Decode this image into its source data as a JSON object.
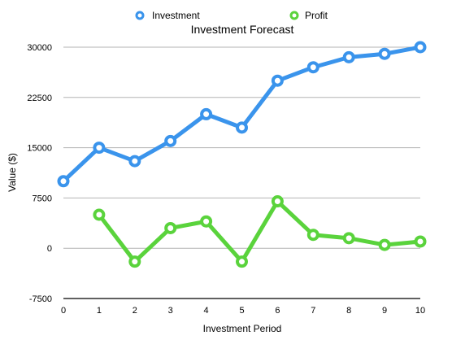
{
  "chart_data": {
    "type": "line",
    "title": "Investment Forecast",
    "xlabel": "Investment Period",
    "ylabel": "Value ($)",
    "x": [
      0,
      1,
      2,
      3,
      4,
      5,
      6,
      7,
      8,
      9,
      10
    ],
    "xlim": [
      0,
      10
    ],
    "ylim": [
      -7500,
      30000
    ],
    "yticks": [
      -7500,
      0,
      7500,
      15000,
      22500,
      30000
    ],
    "grid": true,
    "legend_position": "top-center",
    "series": [
      {
        "name": "Investment",
        "color": "#3a94ec",
        "x": [
          0,
          1,
          2,
          3,
          4,
          5,
          6,
          7,
          8,
          9,
          10
        ],
        "values": [
          10000,
          15000,
          13000,
          16000,
          20000,
          18000,
          25000,
          27000,
          28500,
          29000,
          30000
        ]
      },
      {
        "name": "Profit",
        "color": "#5ad33c",
        "x": [
          1,
          2,
          3,
          4,
          5,
          6,
          7,
          8,
          9,
          10
        ],
        "values": [
          5000,
          -2000,
          3000,
          4000,
          -2000,
          7000,
          2000,
          1500,
          500,
          1000
        ]
      }
    ]
  }
}
